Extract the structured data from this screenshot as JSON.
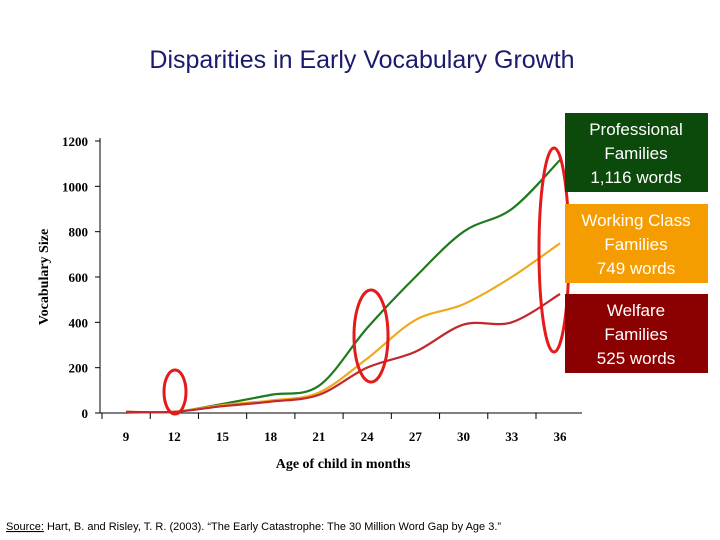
{
  "chart_data": {
    "type": "line",
    "title": "Disparities in Early Vocabulary Growth",
    "x_label": "Age of child in months",
    "y_label": "Vocabulary Size",
    "x": [
      9,
      12,
      15,
      18,
      21,
      24,
      27,
      30,
      33,
      36
    ],
    "xlim": [
      9,
      36
    ],
    "xticks": [
      9,
      12,
      15,
      18,
      21,
      24,
      27,
      30,
      33,
      36
    ],
    "ylim": [
      0,
      1200
    ],
    "yticks": [
      0,
      200,
      400,
      600,
      800,
      1000,
      1200
    ],
    "series": [
      {
        "color": "#1f7a1f",
        "values": [
          5,
          5,
          40,
          80,
          120,
          375,
          600,
          800,
          900,
          1116
        ]
      },
      {
        "color": "#f0a81c",
        "values": [
          5,
          5,
          35,
          55,
          90,
          240,
          410,
          480,
          600,
          749
        ]
      },
      {
        "color": "#c0282d",
        "values": [
          5,
          5,
          30,
          50,
          80,
          200,
          270,
          390,
          400,
          525
        ]
      }
    ],
    "annotations": [
      {
        "lines": [
          "Professional",
          "Families",
          "1,116 words"
        ],
        "color": "#0c4a0c"
      },
      {
        "lines": [
          "Working Class",
          "Families",
          "749 words"
        ],
        "color": "#f59c00"
      },
      {
        "lines": [
          "Welfare",
          "Families",
          "525 words"
        ],
        "color": "#8b0000"
      }
    ],
    "source_label": "Source:",
    "source_text": " Hart, B. and Risley, T. R. (2003). “The Early Catastrophe: The 30 Million Word Gap by Age 3.”"
  }
}
